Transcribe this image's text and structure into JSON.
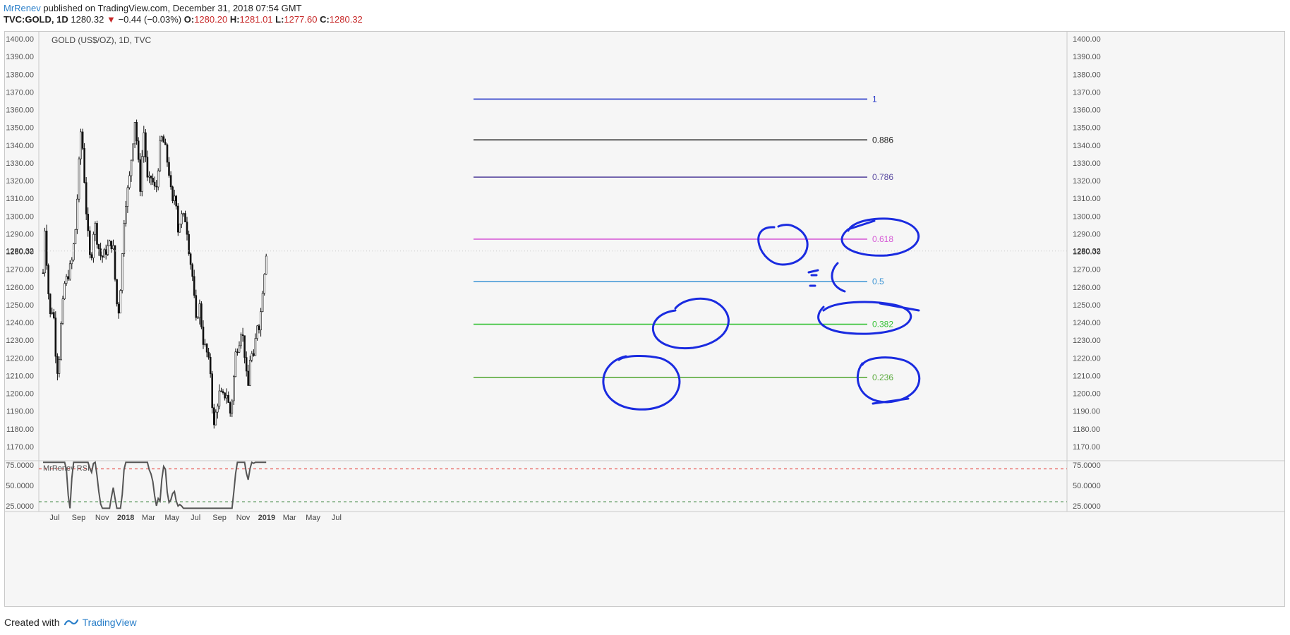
{
  "header": {
    "author": "MrRenev",
    "published": "published on TradingView.com, December 31, 2018 07:54 GMT",
    "symbol": "TVC:GOLD, 1D",
    "last": "1280.32",
    "change": "−0.44 (−0.03%)",
    "open_label": "O:",
    "open": "1280.20",
    "high_label": "H:",
    "high": "1281.01",
    "low_label": "L:",
    "low": "1277.60",
    "close_label": "C:",
    "close": "1280.32"
  },
  "chart_data": {
    "type": "candlestick",
    "title": "GOLD (US$/OZ), 1D, TVC",
    "ylim": [
      1162,
      1404
    ],
    "y_ticks": [
      "1400.00",
      "1390.00",
      "1380.00",
      "1370.00",
      "1360.00",
      "1350.00",
      "1340.00",
      "1330.00",
      "1320.00",
      "1310.00",
      "1300.00",
      "1290.00",
      "1280.00",
      "1270.00",
      "1260.00",
      "1250.00",
      "1240.00",
      "1230.00",
      "1220.00",
      "1210.00",
      "1200.00",
      "1190.00",
      "1180.00",
      "1170.00"
    ],
    "last_price_label": "1280.32",
    "x_ticks": [
      "Jul",
      "Sep",
      "Nov",
      "2018",
      "Mar",
      "May",
      "Jul",
      "Sep",
      "Nov",
      "2019",
      "Mar",
      "May",
      "Jul"
    ],
    "price_path": [
      [
        "2017-06-01",
        1268
      ],
      [
        "2017-06-06",
        1295
      ],
      [
        "2017-06-13",
        1262
      ],
      [
        "2017-06-20",
        1243
      ],
      [
        "2017-06-27",
        1250
      ],
      [
        "2017-07-04",
        1222
      ],
      [
        "2017-07-10",
        1210
      ],
      [
        "2017-07-18",
        1240
      ],
      [
        "2017-07-27",
        1262
      ],
      [
        "2017-08-04",
        1266
      ],
      [
        "2017-08-15",
        1275
      ],
      [
        "2017-08-25",
        1295
      ],
      [
        "2017-09-01",
        1325
      ],
      [
        "2017-09-08",
        1352
      ],
      [
        "2017-09-15",
        1325
      ],
      [
        "2017-09-22",
        1298
      ],
      [
        "2017-10-02",
        1272
      ],
      [
        "2017-10-12",
        1298
      ],
      [
        "2017-10-20",
        1285
      ],
      [
        "2017-10-30",
        1276
      ],
      [
        "2017-11-10",
        1280
      ],
      [
        "2017-11-20",
        1284
      ],
      [
        "2017-11-29",
        1284
      ],
      [
        "2017-12-05",
        1262
      ],
      [
        "2017-12-12",
        1242
      ],
      [
        "2017-12-20",
        1265
      ],
      [
        "2017-12-29",
        1304
      ],
      [
        "2018-01-10",
        1320
      ],
      [
        "2018-01-25",
        1355
      ],
      [
        "2018-02-08",
        1315
      ],
      [
        "2018-02-16",
        1350
      ],
      [
        "2018-02-27",
        1318
      ],
      [
        "2018-03-08",
        1322
      ],
      [
        "2018-03-20",
        1313
      ],
      [
        "2018-04-02",
        1345
      ],
      [
        "2018-04-12",
        1340
      ],
      [
        "2018-04-25",
        1322
      ],
      [
        "2018-05-01",
        1305
      ],
      [
        "2018-05-10",
        1315
      ],
      [
        "2018-05-16",
        1292
      ],
      [
        "2018-05-25",
        1300
      ],
      [
        "2018-06-06",
        1298
      ],
      [
        "2018-06-15",
        1278
      ],
      [
        "2018-06-22",
        1268
      ],
      [
        "2018-07-02",
        1240
      ],
      [
        "2018-07-11",
        1250
      ],
      [
        "2018-07-20",
        1230
      ],
      [
        "2018-07-31",
        1222
      ],
      [
        "2018-08-10",
        1210
      ],
      [
        "2018-08-16",
        1178
      ],
      [
        "2018-08-23",
        1190
      ],
      [
        "2018-08-31",
        1200
      ],
      [
        "2018-09-10",
        1198
      ],
      [
        "2018-09-20",
        1200
      ],
      [
        "2018-09-28",
        1188
      ],
      [
        "2018-10-05",
        1200
      ],
      [
        "2018-10-12",
        1222
      ],
      [
        "2018-10-22",
        1230
      ],
      [
        "2018-10-26",
        1236
      ],
      [
        "2018-11-02",
        1230
      ],
      [
        "2018-11-13",
        1200
      ],
      [
        "2018-11-20",
        1224
      ],
      [
        "2018-11-29",
        1218
      ],
      [
        "2018-12-06",
        1240
      ],
      [
        "2018-12-14",
        1238
      ],
      [
        "2018-12-21",
        1258
      ],
      [
        "2018-12-31",
        1280.32
      ]
    ],
    "fib_levels": [
      {
        "label": "1",
        "price": 1366,
        "color": "#2536c8"
      },
      {
        "label": "0.886",
        "price": 1343,
        "color": "#222222"
      },
      {
        "label": "0.786",
        "price": 1322,
        "color": "#5a4aa0"
      },
      {
        "label": "0.618",
        "price": 1287,
        "color": "#d65ad6"
      },
      {
        "label": "0.5",
        "price": 1263,
        "color": "#3a93d4"
      },
      {
        "label": "0.382",
        "price": 1239,
        "color": "#35c235"
      },
      {
        "label": "0.236",
        "price": 1209,
        "color": "#5aaa3c"
      }
    ],
    "rsi": {
      "name": "MrRenev RSI",
      "ylim": [
        18,
        80
      ],
      "y_ticks": [
        "75.0000",
        "50.0000",
        "25.0000"
      ],
      "upper": 70,
      "lower": 30
    }
  },
  "footer": {
    "created_with": "Created with",
    "brand": "TradingView"
  }
}
